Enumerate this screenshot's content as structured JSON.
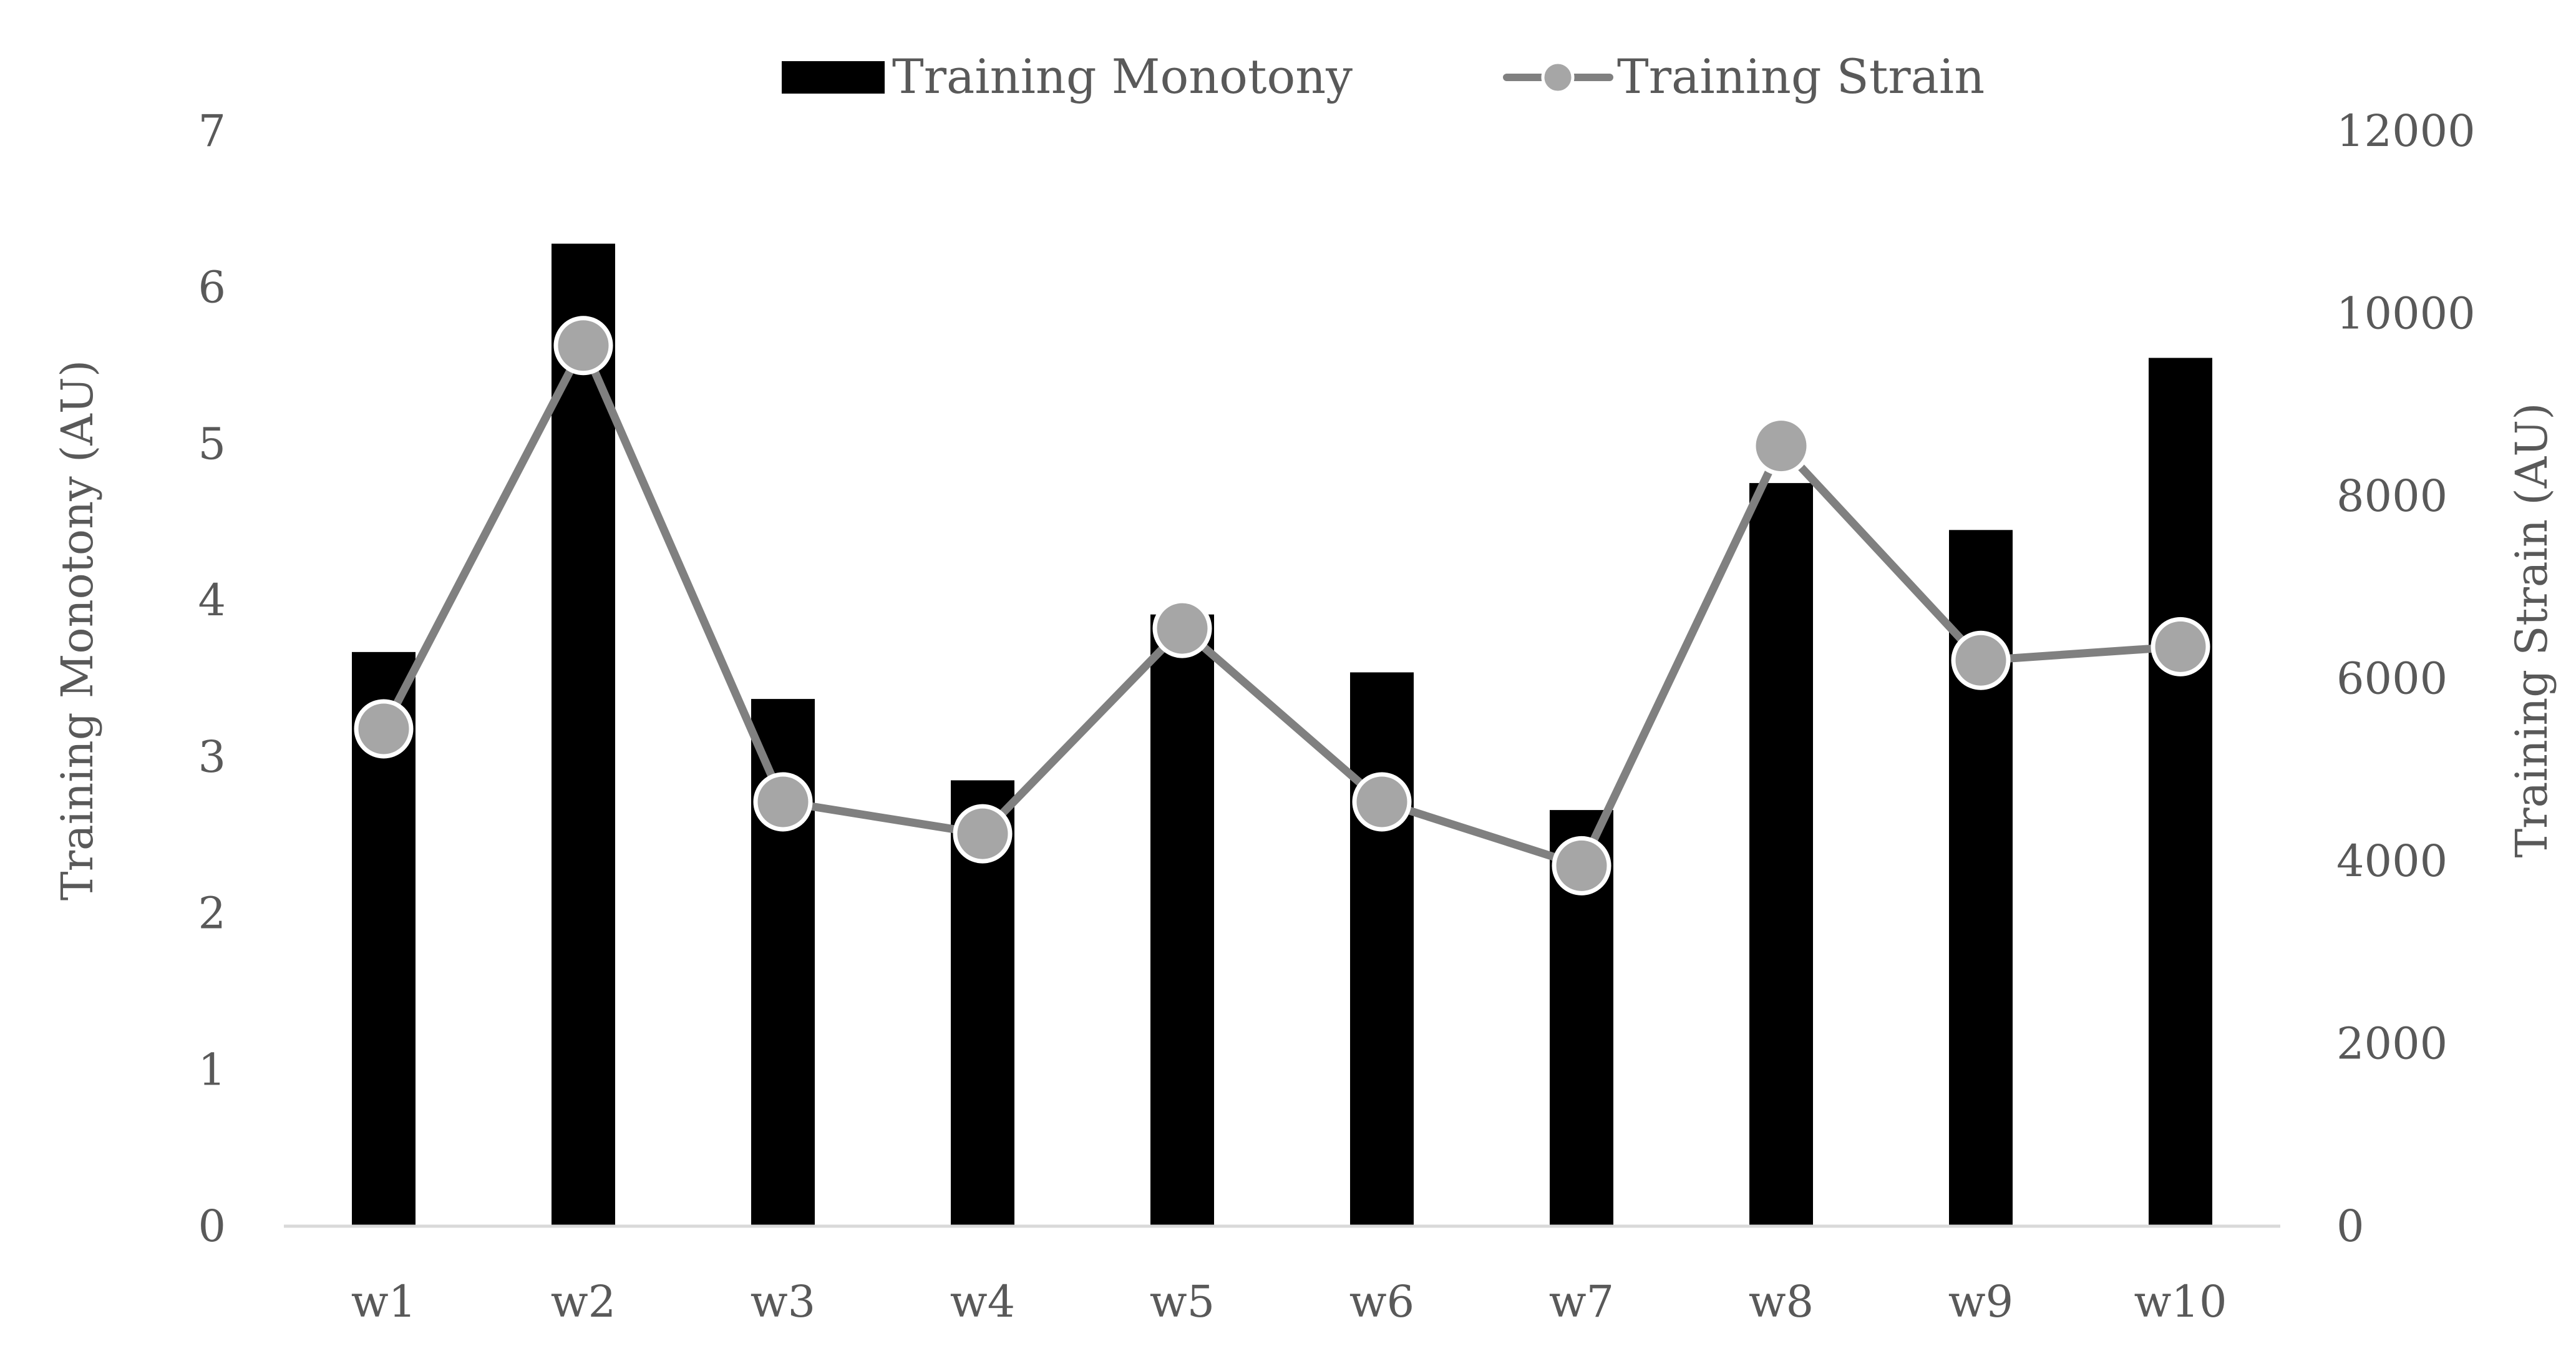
{
  "chart_data": {
    "type": "bar",
    "categories": [
      "w1",
      "w2",
      "w3",
      "w4",
      "w5",
      "w6",
      "w7",
      "w8",
      "w9",
      "w10"
    ],
    "series": [
      {
        "name": "Training Monotony",
        "type": "bar",
        "axis": "left",
        "values": [
          3.67,
          6.28,
          3.37,
          2.85,
          3.91,
          3.54,
          2.66,
          4.75,
          4.45,
          5.55
        ]
      },
      {
        "name": "Training Strain",
        "type": "line",
        "axis": "right",
        "values": [
          5450,
          9650,
          4650,
          4300,
          6550,
          4650,
          3950,
          8550,
          6200,
          6350
        ]
      }
    ],
    "ylabel": "Training Monotony (AU)",
    "y2label": "Training Strain (AU)",
    "ylim": [
      0,
      7
    ],
    "y2lim": [
      0,
      12000
    ],
    "yticks": [
      "0",
      "1",
      "2",
      "3",
      "4",
      "5",
      "6",
      "7"
    ],
    "y2ticks": [
      "0",
      "2000",
      "4000",
      "6000",
      "8000",
      "10000",
      "12000"
    ],
    "legend_position": "top",
    "grid": false,
    "colors": {
      "bar": "#000000",
      "line": "#808080",
      "marker": "#a6a6a6",
      "marker_edge": "#ffffff",
      "axis": "#d9d9d9",
      "text": "#595959"
    }
  }
}
